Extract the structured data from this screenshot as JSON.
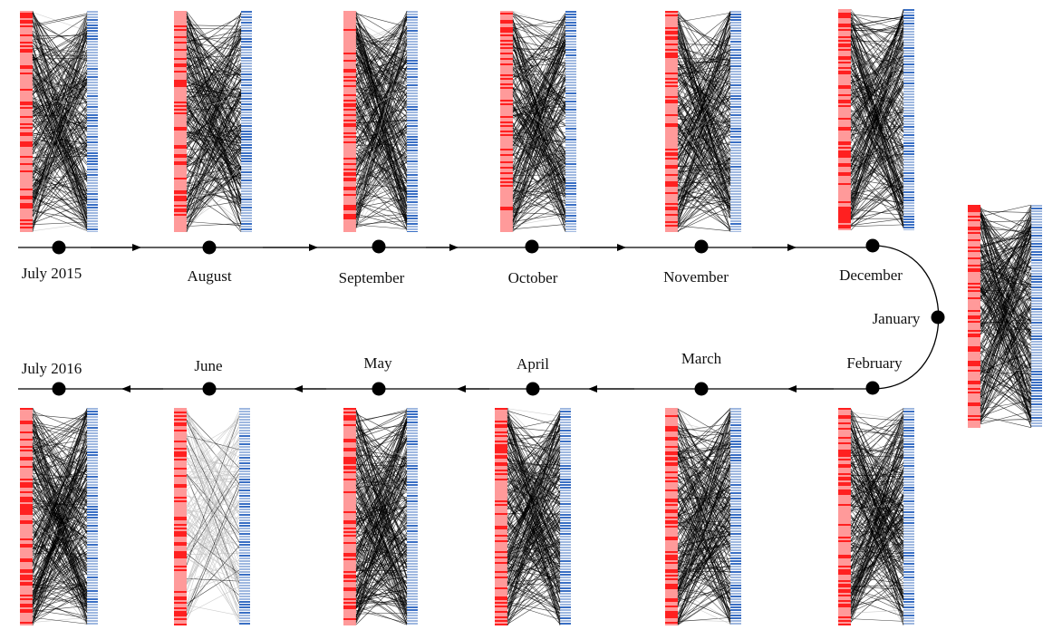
{
  "timeline": {
    "months": [
      {
        "label": "July 2015",
        "seed": 11
      },
      {
        "label": "August",
        "seed": 23
      },
      {
        "label": "September",
        "seed": 37
      },
      {
        "label": "October",
        "seed": 41
      },
      {
        "label": "November",
        "seed": 53
      },
      {
        "label": "December",
        "seed": 67
      },
      {
        "label": "January",
        "seed": 71
      },
      {
        "label": "February",
        "seed": 83
      },
      {
        "label": "March",
        "seed": 97
      },
      {
        "label": "April",
        "seed": 101
      },
      {
        "label": "May",
        "seed": 113
      },
      {
        "label": "June",
        "seed": 127
      },
      {
        "label": "July 2016",
        "seed": 131
      }
    ],
    "colors": {
      "left_bar": "#ff2020",
      "left_bar_light": "#ff9a9a",
      "right_bar": "#3a6fc4",
      "right_bar_light": "#9fb8e0",
      "edges": "#000000",
      "edges_light": "#bdbdbd",
      "axis": "#000000"
    }
  }
}
